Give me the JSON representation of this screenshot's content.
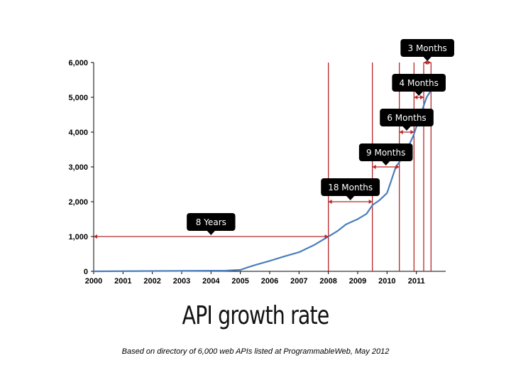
{
  "title": "API growth rate",
  "caption": "Based on directory of 6,000 web APIs listed at ProgrammableWeb, May 2012",
  "chart_data": {
    "type": "line",
    "xlim": [
      2000,
      2012
    ],
    "ylim": [
      0,
      6000
    ],
    "x_ticks": [
      "2000",
      "2001",
      "2002",
      "2003",
      "2004",
      "2005",
      "2006",
      "2007",
      "2008",
      "2009",
      "2010",
      "2011"
    ],
    "y_ticks": [
      "0",
      "1,000",
      "2,000",
      "3,000",
      "4,000",
      "5,000",
      "6,000"
    ],
    "grid": false,
    "series": [
      {
        "color": "#4a7ebb",
        "x": [
          2000,
          2002.3,
          2004.5,
          2005.0,
          2005.2,
          2005.5,
          2006.0,
          2006.5,
          2007.0,
          2007.5,
          2008.0,
          2008.3,
          2008.6,
          2009.0,
          2009.3,
          2009.5,
          2009.75,
          2010.0,
          2010.1,
          2010.3,
          2010.6,
          2010.9,
          2011.1,
          2011.35,
          2011.5
        ],
        "y": [
          0,
          10,
          20,
          40,
          100,
          180,
          300,
          430,
          550,
          750,
          1000,
          1150,
          1350,
          1500,
          1650,
          1900,
          2050,
          2250,
          2500,
          3000,
          3350,
          3900,
          4400,
          5000,
          5200
        ]
      }
    ],
    "markers": [
      2008.0,
      2009.5,
      2010.42,
      2010.92,
      2011.25,
      2011.5
    ],
    "callouts": [
      {
        "label": "8 Years",
        "from": 2000.0,
        "to": 2008.0,
        "y": 1000
      },
      {
        "label": "18 Months",
        "from": 2008.0,
        "to": 2009.5,
        "y": 2000
      },
      {
        "label": "9 Months",
        "from": 2009.5,
        "to": 2010.42,
        "y": 3000
      },
      {
        "label": "6 Months",
        "from": 2010.42,
        "to": 2010.92,
        "y": 4000
      },
      {
        "label": "4 Months",
        "from": 2010.92,
        "to": 2011.25,
        "y": 5000
      },
      {
        "label": "3 Months",
        "from": 2011.25,
        "to": 2011.5,
        "y": 6000
      }
    ],
    "colors": {
      "line": "#4a7ebb",
      "marker": "#b5282c",
      "callout_bg": "#000000",
      "callout_text": "#ffffff"
    }
  }
}
